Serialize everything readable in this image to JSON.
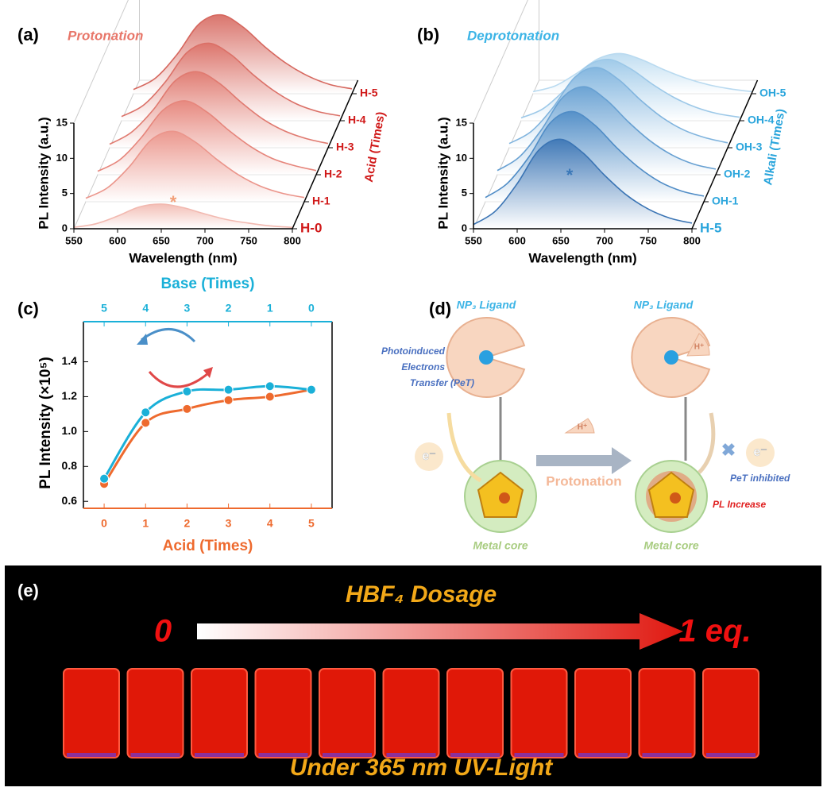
{
  "chart_data": [
    {
      "type": "waterfall",
      "panel_label": "(a)",
      "title": "Protonation",
      "xlabel": "Wavelength (nm)",
      "ylabel": "PL Intensity (a.u.)",
      "zlabel": "Acid (Times)",
      "annotation": "*",
      "x": [
        550,
        575,
        600,
        625,
        650,
        675,
        700,
        725,
        750,
        775,
        800
      ],
      "xlim": [
        550,
        800
      ],
      "xticks": [
        550,
        600,
        650,
        700,
        750,
        800
      ],
      "ylim": [
        0,
        15
      ],
      "yticks": [
        0,
        5,
        10,
        15
      ],
      "title_color": "#e8776a",
      "label_color": "#d01818",
      "annotation_color": "#f2a07a",
      "series": [
        {
          "name": "H-0",
          "color": "#f2b9b0",
          "values": [
            0.2,
            0.7,
            1.8,
            3.1,
            3.5,
            3.0,
            2.1,
            1.3,
            0.8,
            0.4,
            0.2
          ]
        },
        {
          "name": "H-1",
          "color": "#eb958b",
          "values": [
            0.5,
            2,
            5,
            8.8,
            10,
            8.5,
            6,
            3.8,
            2.2,
            1.2,
            0.6
          ]
        },
        {
          "name": "H-2",
          "color": "#e6857b",
          "values": [
            0.5,
            2.1,
            5.3,
            9.2,
            10.5,
            8.9,
            6.3,
            4,
            2.3,
            1.3,
            0.6
          ]
        },
        {
          "name": "H-3",
          "color": "#e07a70",
          "values": [
            0.5,
            2.2,
            5.4,
            9.5,
            10.8,
            9.2,
            6.5,
            4.1,
            2.4,
            1.3,
            0.6
          ]
        },
        {
          "name": "H-4",
          "color": "#db7067",
          "values": [
            0.6,
            2.2,
            5.5,
            9.7,
            11,
            9.4,
            6.6,
            4.2,
            2.4,
            1.3,
            0.7
          ]
        },
        {
          "name": "H-5",
          "color": "#d6675e",
          "values": [
            0.6,
            2.2,
            5.6,
            9.9,
            11.2,
            9.5,
            6.7,
            4.3,
            2.5,
            1.3,
            0.7
          ]
        }
      ]
    },
    {
      "type": "waterfall",
      "panel_label": "(b)",
      "title": "Deprotonation",
      "xlabel": "Wavelength (nm)",
      "ylabel": "PL Intensity (a.u.)",
      "zlabel": "Alkali (Times)",
      "annotation": "*",
      "x": [
        550,
        575,
        600,
        625,
        650,
        675,
        700,
        725,
        750,
        775,
        800
      ],
      "xlim": [
        550,
        800
      ],
      "xticks": [
        550,
        600,
        650,
        700,
        750,
        800
      ],
      "ylim": [
        0,
        15
      ],
      "yticks": [
        0,
        5,
        10,
        15
      ],
      "title_color": "#3cb4e6",
      "label_color": "#2aa5dc",
      "annotation_color": "#3a78b8",
      "series": [
        {
          "name": "H-5",
          "color": "#3a74b4",
          "values": [
            0.6,
            2.5,
            6.4,
            11.2,
            12.7,
            10.8,
            7.6,
            4.8,
            2.8,
            1.5,
            0.8
          ]
        },
        {
          "name": "OH-1",
          "color": "#4f8cc6",
          "values": [
            0.6,
            2.6,
            6.4,
            11.3,
            12.8,
            10.9,
            7.7,
            4.9,
            2.8,
            1.5,
            0.8
          ]
        },
        {
          "name": "OH-2",
          "color": "#67a0d2",
          "values": [
            0.6,
            2.5,
            6.3,
            11,
            12.5,
            10.6,
            7.5,
            4.8,
            2.8,
            1.5,
            0.8
          ]
        },
        {
          "name": "OH-3",
          "color": "#80b4de",
          "values": [
            0.6,
            2.3,
            5.7,
            10,
            11.4,
            9.7,
            6.8,
            4.3,
            2.5,
            1.4,
            0.7
          ]
        },
        {
          "name": "OH-4",
          "color": "#9cc8e8",
          "values": [
            0.4,
            1.7,
            4.4,
            7.7,
            8.7,
            7.4,
            5.2,
            3.3,
            1.9,
            1,
            0.5
          ]
        },
        {
          "name": "OH-5",
          "color": "#b9daf0",
          "values": [
            0.3,
            1.1,
            2.9,
            5,
            5.7,
            4.8,
            3.4,
            2.2,
            1.3,
            0.7,
            0.3
          ]
        }
      ]
    },
    {
      "type": "line",
      "panel_label": "(c)",
      "xlabel": "Acid (Times)",
      "x2label": "Base (Times)",
      "ylabel": "PL Intensity (×10⁵)",
      "x": [
        0,
        1,
        2,
        3,
        4,
        5
      ],
      "xlim": [
        -0.5,
        5.5
      ],
      "xticks": [
        0,
        1,
        2,
        3,
        4,
        5
      ],
      "x2": [
        5,
        4,
        3,
        2,
        1,
        0
      ],
      "x2lim": [
        5.5,
        -0.5
      ],
      "x2ticks": [
        5,
        4,
        3,
        2,
        1,
        0
      ],
      "ylim": [
        0.56,
        1.63
      ],
      "yticks": [
        0.6,
        0.8,
        {
          "value": 1,
          "label": "1.0"
        },
        1.2,
        1.4
      ],
      "series": [
        {
          "color": "#ee6a2e",
          "values": [
            0.7,
            1.05,
            1.13,
            1.18,
            1.2,
            1.24
          ]
        },
        {
          "color": "#1ab0d8",
          "axis": "x2",
          "values": [
            0.73,
            1.11,
            1.23,
            1.24,
            1.26,
            1.24
          ]
        }
      ]
    }
  ],
  "diagram": {
    "panel_label": "(d)",
    "ligand_left": "NP₃ Ligand",
    "ligand_right": "NP₃ Ligand",
    "pet": [
      "Photoinduced",
      "Electrons",
      "Transfer  (PeT)"
    ],
    "electron_left": "e⁻",
    "electron_right": "e⁻",
    "proton_labels": [
      "H⁺",
      "H⁺"
    ],
    "protonation": "Protonation",
    "pet_inhibited": "PeT inhibited",
    "pl_increase": "PL Increase",
    "core_left": "Metal core",
    "core_right": "Metal core"
  },
  "photo": {
    "panel_label": "(e)",
    "title": "HBF₄ Dosage",
    "start": "0",
    "end": "1 eq.",
    "caption": "Under 365 nm UV-Light"
  }
}
